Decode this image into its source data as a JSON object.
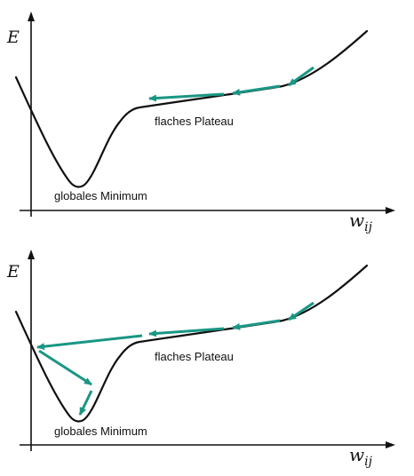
{
  "colors": {
    "arrow": "#1a9684",
    "curve": "#111111",
    "axis": "#111111"
  },
  "panels": [
    {
      "y_axis_label": "E",
      "x_axis_label": "w",
      "x_axis_subscript": "ij",
      "plateau_label": "flaches Plateau",
      "minimum_label": "globales Minimum"
    },
    {
      "y_axis_label": "E",
      "x_axis_label": "w",
      "x_axis_subscript": "ij",
      "plateau_label": "flaches Plateau",
      "minimum_label": "globales Minimum"
    }
  ]
}
